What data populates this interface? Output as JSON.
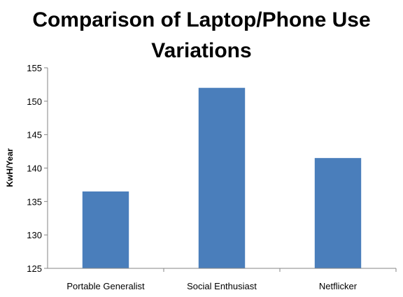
{
  "chart_data": {
    "type": "bar",
    "title_lines": [
      "Comparison of Laptop/Phone Use",
      "Variations"
    ],
    "xlabel": "",
    "ylabel": "KwH/Year",
    "categories": [
      "Portable Generalist",
      "Social Enthusiast",
      "Netflicker"
    ],
    "values": [
      136.5,
      152,
      141.5
    ],
    "ylim": [
      125,
      155
    ],
    "yticks": [
      "125",
      "130",
      "135",
      "140",
      "145",
      "150",
      "155"
    ],
    "grid": false,
    "legend": "none",
    "bar_color": "#4a7ebb"
  }
}
